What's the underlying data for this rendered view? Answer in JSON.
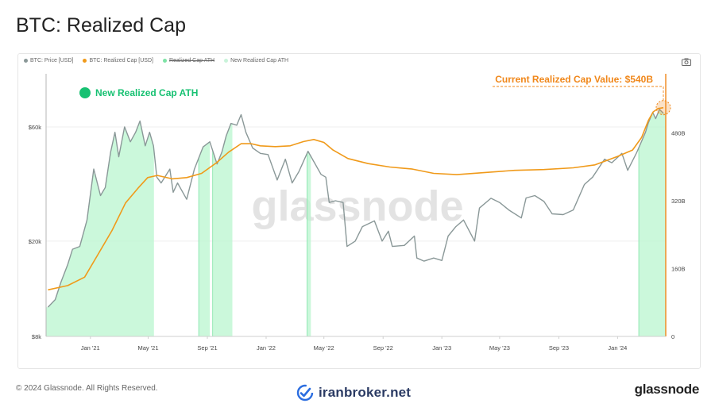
{
  "page": {
    "title": "BTC: Realized Cap",
    "copyright": "© 2024 Glassnode. All Rights Reserved.",
    "partner_mark": "iranbroker.net",
    "brand": "glassnode",
    "watermark": "glassnode"
  },
  "toolbar": {
    "camera_icon": "camera-icon"
  },
  "colors": {
    "price": "#8a9898",
    "realized_cap": "#f09a1a",
    "ath_shade": "#b9f5cf",
    "ath_line": "#7ee3a6",
    "ath_marker": "#17c172",
    "annotation": "#f0871a",
    "watermark": "#e3e3e3"
  },
  "chart_data": {
    "type": "line",
    "legend": [
      {
        "label": "BTC: Price [USD]",
        "color": "#8a9898",
        "active": true
      },
      {
        "label": "BTC: Realized Cap [USD]",
        "color": "#f09a1a",
        "active": true
      },
      {
        "label": "Realized Cap ATH",
        "color": "#7ee3a6",
        "active": false
      },
      {
        "label": "New Realized Cap ATH",
        "color": "#c9f3da",
        "active": true
      }
    ],
    "annotations": {
      "ath_label": "New Realized Cap ATH",
      "current_value_label": "Current Realized Cap Value: $540B"
    },
    "x_ticks": [
      "Jan '21",
      "May '21",
      "Sep '21",
      "Jan '22",
      "May '22",
      "Sep '22",
      "Jan '23",
      "May '23",
      "Sep '23",
      "Jan '24"
    ],
    "x_tick_dates": [
      "2021-01-01",
      "2021-05-01",
      "2021-09-01",
      "2022-01-01",
      "2022-05-01",
      "2022-09-01",
      "2023-01-01",
      "2023-05-01",
      "2023-09-01",
      "2024-01-01"
    ],
    "x_range": [
      "2020-10-01",
      "2024-04-10"
    ],
    "y_left": {
      "scale": "log",
      "min": 8000,
      "max": 100000,
      "ticks": [
        8000,
        20000,
        60000
      ],
      "tick_labels": [
        "$8k",
        "$20k",
        "$60k"
      ]
    },
    "y_right": {
      "scale": "linear",
      "min": 0,
      "max": 620,
      "unit": "B",
      "ticks": [
        0,
        160,
        320,
        480
      ],
      "tick_labels": [
        "0",
        "160B",
        "320B",
        "480B"
      ]
    },
    "series": [
      {
        "name": "BTC: Price [USD]",
        "axis": "left",
        "x": [
          "2020-10-05",
          "2020-10-20",
          "2020-11-01",
          "2020-11-15",
          "2020-11-25",
          "2020-12-10",
          "2020-12-25",
          "2021-01-08",
          "2021-01-22",
          "2021-02-01",
          "2021-02-12",
          "2021-02-21",
          "2021-03-01",
          "2021-03-13",
          "2021-03-25",
          "2021-04-05",
          "2021-04-14",
          "2021-04-25",
          "2021-05-04",
          "2021-05-12",
          "2021-05-19",
          "2021-05-28",
          "2021-06-15",
          "2021-06-22",
          "2021-07-01",
          "2021-07-20",
          "2021-08-05",
          "2021-08-23",
          "2021-09-06",
          "2021-09-21",
          "2021-10-01",
          "2021-10-10",
          "2021-10-20",
          "2021-11-01",
          "2021-11-10",
          "2021-11-20",
          "2021-12-04",
          "2021-12-20",
          "2022-01-05",
          "2022-01-24",
          "2022-02-10",
          "2022-02-24",
          "2022-03-10",
          "2022-03-29",
          "2022-04-10",
          "2022-04-25",
          "2022-05-05",
          "2022-05-12",
          "2022-05-25",
          "2022-06-10",
          "2022-06-18",
          "2022-07-05",
          "2022-07-20",
          "2022-08-14",
          "2022-08-30",
          "2022-09-12",
          "2022-09-20",
          "2022-10-15",
          "2022-11-05",
          "2022-11-10",
          "2022-11-25",
          "2022-12-15",
          "2023-01-01",
          "2023-01-14",
          "2023-01-30",
          "2023-02-15",
          "2023-03-10",
          "2023-03-20",
          "2023-04-13",
          "2023-05-01",
          "2023-05-20",
          "2023-06-15",
          "2023-06-25",
          "2023-07-13",
          "2023-08-01",
          "2023-08-18",
          "2023-09-10",
          "2023-10-01",
          "2023-10-24",
          "2023-11-10",
          "2023-12-05",
          "2023-12-20",
          "2024-01-10",
          "2024-01-22",
          "2024-02-10",
          "2024-02-28",
          "2024-03-05",
          "2024-03-14",
          "2024-03-20",
          "2024-03-28",
          "2024-04-05"
        ],
        "values": [
          10600,
          11400,
          13500,
          16000,
          18500,
          19000,
          24500,
          40000,
          31000,
          33500,
          47000,
          57000,
          45000,
          60000,
          52000,
          57000,
          63500,
          50000,
          57000,
          50000,
          37000,
          35000,
          40000,
          32000,
          35000,
          29900,
          40000,
          49500,
          52000,
          42000,
          47000,
          55000,
          62000,
          61000,
          67500,
          57000,
          49000,
          46500,
          46000,
          36000,
          44000,
          35000,
          39000,
          47500,
          43000,
          38000,
          37000,
          29000,
          29500,
          29000,
          19000,
          20000,
          23000,
          24300,
          20000,
          22000,
          19000,
          19200,
          21000,
          17000,
          16500,
          17000,
          16600,
          21000,
          23000,
          24500,
          20000,
          27500,
          30200,
          29000,
          27000,
          25000,
          30300,
          31000,
          29300,
          26000,
          25800,
          27000,
          34500,
          37000,
          44000,
          42500,
          46500,
          39500,
          47000,
          57000,
          62500,
          69000,
          65000,
          71000,
          68500
        ]
      },
      {
        "name": "BTC: Realized Cap [USD]",
        "axis": "right",
        "x": [
          "2020-10-05",
          "2020-11-15",
          "2020-12-20",
          "2021-01-15",
          "2021-02-15",
          "2021-03-15",
          "2021-04-10",
          "2021-04-30",
          "2021-05-20",
          "2021-06-20",
          "2021-07-20",
          "2021-08-20",
          "2021-09-20",
          "2021-10-15",
          "2021-11-10",
          "2021-12-01",
          "2021-12-20",
          "2022-01-20",
          "2022-02-20",
          "2022-03-20",
          "2022-04-10",
          "2022-05-01",
          "2022-05-20",
          "2022-06-20",
          "2022-08-01",
          "2022-09-15",
          "2022-11-01",
          "2022-12-15",
          "2023-02-01",
          "2023-04-01",
          "2023-06-01",
          "2023-08-01",
          "2023-10-01",
          "2023-11-15",
          "2024-01-01",
          "2024-02-01",
          "2024-02-20",
          "2024-03-05",
          "2024-03-15",
          "2024-03-25",
          "2024-04-05"
        ],
        "values": [
          110,
          120,
          140,
          190,
          250,
          315,
          350,
          375,
          380,
          372,
          375,
          385,
          410,
          435,
          455,
          455,
          450,
          448,
          450,
          460,
          465,
          458,
          440,
          420,
          408,
          400,
          395,
          385,
          382,
          387,
          392,
          394,
          398,
          405,
          425,
          440,
          470,
          510,
          530,
          538,
          540
        ]
      }
    ],
    "ath_regions": [
      [
        "2020-10-01",
        "2021-05-13"
      ],
      [
        "2021-08-14",
        "2021-09-06"
      ],
      [
        "2021-09-12",
        "2021-10-23"
      ],
      [
        "2022-03-27",
        "2022-04-04"
      ],
      [
        "2024-02-14",
        "2024-04-10"
      ]
    ]
  }
}
